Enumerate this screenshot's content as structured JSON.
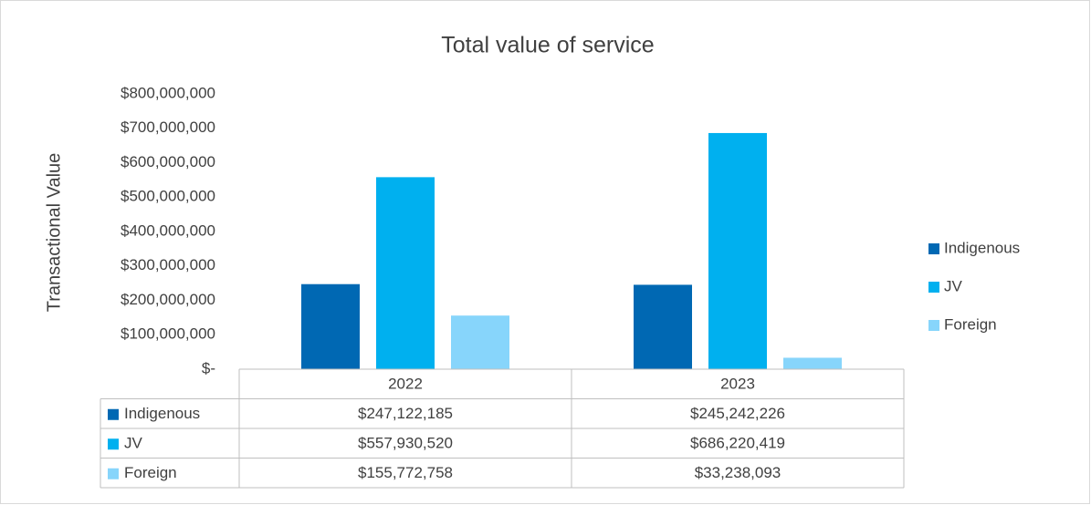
{
  "chart_data": {
    "type": "bar",
    "title": "Total value of service",
    "y_label": "Transactional Value",
    "categories": [
      "2022",
      "2023"
    ],
    "series": [
      {
        "name": "Indigenous",
        "color": "#0068b3",
        "values": [
          247122185,
          245242226
        ],
        "value_labels": [
          "$247,122,185",
          "$245,242,226"
        ]
      },
      {
        "name": "JV",
        "color": "#00b0ef",
        "values": [
          557930520,
          686220419
        ],
        "value_labels": [
          "$557,930,520",
          "$686,220,419"
        ]
      },
      {
        "name": "Foreign",
        "color": "#87d5fb",
        "values": [
          155772758,
          33238093
        ],
        "value_labels": [
          "$155,772,758",
          "$33,238,093"
        ]
      }
    ],
    "ylim": [
      0,
      800000000
    ],
    "yticks": [
      {
        "value": 0,
        "label": "$-"
      },
      {
        "value": 100000000,
        "label": "$100,000,000"
      },
      {
        "value": 200000000,
        "label": "$200,000,000"
      },
      {
        "value": 300000000,
        "label": "$300,000,000"
      },
      {
        "value": 400000000,
        "label": "$400,000,000"
      },
      {
        "value": 500000000,
        "label": "$500,000,000"
      },
      {
        "value": 600000000,
        "label": "$600,000,000"
      },
      {
        "value": 700000000,
        "label": "$700,000,000"
      },
      {
        "value": 800000000,
        "label": "$800,000,000"
      }
    ],
    "grid": false,
    "legend": "right"
  }
}
